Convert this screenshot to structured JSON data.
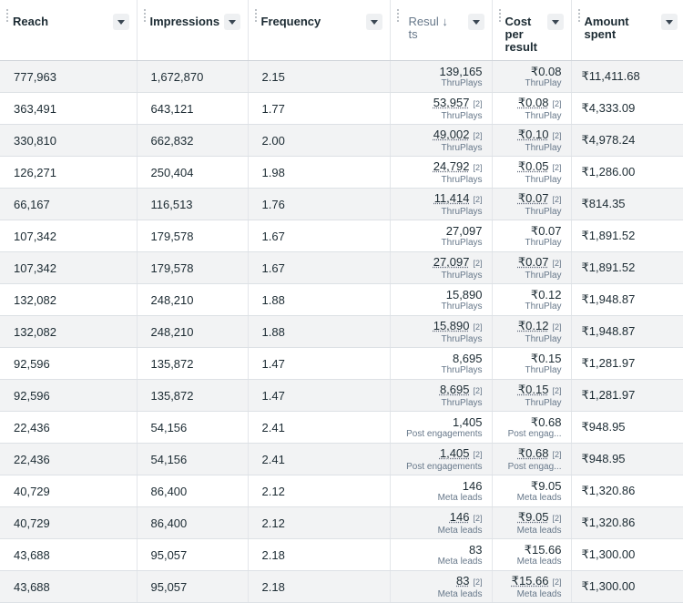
{
  "columns": [
    {
      "label": "Reach"
    },
    {
      "label": "Impressions"
    },
    {
      "label": "Frequency"
    },
    {
      "label": "Resul ↓\nts"
    },
    {
      "label": "Cost\nper\nresult"
    },
    {
      "label": "Amount\nspent"
    }
  ],
  "rows": [
    {
      "reach": "777,963",
      "impressions": "1,672,870",
      "frequency": "2.15",
      "results": "139,165",
      "results_type": "ThruPlays",
      "cost": "₹0.08",
      "cost_type": "ThruPlay",
      "amount": "₹11,411.68",
      "ref": ""
    },
    {
      "reach": "363,491",
      "impressions": "643,121",
      "frequency": "1.77",
      "results": "53,957",
      "results_type": "ThruPlays",
      "cost": "₹0.08",
      "cost_type": "ThruPlay",
      "amount": "₹4,333.09",
      "ref": "[2]"
    },
    {
      "reach": "330,810",
      "impressions": "662,832",
      "frequency": "2.00",
      "results": "49,002",
      "results_type": "ThruPlays",
      "cost": "₹0.10",
      "cost_type": "ThruPlay",
      "amount": "₹4,978.24",
      "ref": "[2]"
    },
    {
      "reach": "126,271",
      "impressions": "250,404",
      "frequency": "1.98",
      "results": "24,792",
      "results_type": "ThruPlays",
      "cost": "₹0.05",
      "cost_type": "ThruPlay",
      "amount": "₹1,286.00",
      "ref": "[2]"
    },
    {
      "reach": "66,167",
      "impressions": "116,513",
      "frequency": "1.76",
      "results": "11,414",
      "results_type": "ThruPlays",
      "cost": "₹0.07",
      "cost_type": "ThruPlay",
      "amount": "₹814.35",
      "ref": "[2]"
    },
    {
      "reach": "107,342",
      "impressions": "179,578",
      "frequency": "1.67",
      "results": "27,097",
      "results_type": "ThruPlays",
      "cost": "₹0.07",
      "cost_type": "ThruPlay",
      "amount": "₹1,891.52",
      "ref": ""
    },
    {
      "reach": "107,342",
      "impressions": "179,578",
      "frequency": "1.67",
      "results": "27,097",
      "results_type": "ThruPlays",
      "cost": "₹0.07",
      "cost_type": "ThruPlay",
      "amount": "₹1,891.52",
      "ref": "[2]"
    },
    {
      "reach": "132,082",
      "impressions": "248,210",
      "frequency": "1.88",
      "results": "15,890",
      "results_type": "ThruPlays",
      "cost": "₹0.12",
      "cost_type": "ThruPlay",
      "amount": "₹1,948.87",
      "ref": ""
    },
    {
      "reach": "132,082",
      "impressions": "248,210",
      "frequency": "1.88",
      "results": "15,890",
      "results_type": "ThruPlays",
      "cost": "₹0.12",
      "cost_type": "ThruPlay",
      "amount": "₹1,948.87",
      "ref": "[2]"
    },
    {
      "reach": "92,596",
      "impressions": "135,872",
      "frequency": "1.47",
      "results": "8,695",
      "results_type": "ThruPlays",
      "cost": "₹0.15",
      "cost_type": "ThruPlay",
      "amount": "₹1,281.97",
      "ref": ""
    },
    {
      "reach": "92,596",
      "impressions": "135,872",
      "frequency": "1.47",
      "results": "8,695",
      "results_type": "ThruPlays",
      "cost": "₹0.15",
      "cost_type": "ThruPlay",
      "amount": "₹1,281.97",
      "ref": "[2]"
    },
    {
      "reach": "22,436",
      "impressions": "54,156",
      "frequency": "2.41",
      "results": "1,405",
      "results_type": "Post engagements",
      "cost": "₹0.68",
      "cost_type": "Post engag...",
      "amount": "₹948.95",
      "ref": ""
    },
    {
      "reach": "22,436",
      "impressions": "54,156",
      "frequency": "2.41",
      "results": "1,405",
      "results_type": "Post engagements",
      "cost": "₹0.68",
      "cost_type": "Post engag...",
      "amount": "₹948.95",
      "ref": "[2]"
    },
    {
      "reach": "40,729",
      "impressions": "86,400",
      "frequency": "2.12",
      "results": "146",
      "results_type": "Meta leads",
      "cost": "₹9.05",
      "cost_type": "Meta leads",
      "amount": "₹1,320.86",
      "ref": ""
    },
    {
      "reach": "40,729",
      "impressions": "86,400",
      "frequency": "2.12",
      "results": "146",
      "results_type": "Meta leads",
      "cost": "₹9.05",
      "cost_type": "Meta leads",
      "amount": "₹1,320.86",
      "ref": "[2]"
    },
    {
      "reach": "43,688",
      "impressions": "95,057",
      "frequency": "2.18",
      "results": "83",
      "results_type": "Meta leads",
      "cost": "₹15.66",
      "cost_type": "Meta leads",
      "amount": "₹1,300.00",
      "ref": ""
    },
    {
      "reach": "43,688",
      "impressions": "95,057",
      "frequency": "2.18",
      "results": "83",
      "results_type": "Meta leads",
      "cost": "₹15.66",
      "cost_type": "Meta leads",
      "amount": "₹1,300.00",
      "ref": "[2]"
    }
  ]
}
